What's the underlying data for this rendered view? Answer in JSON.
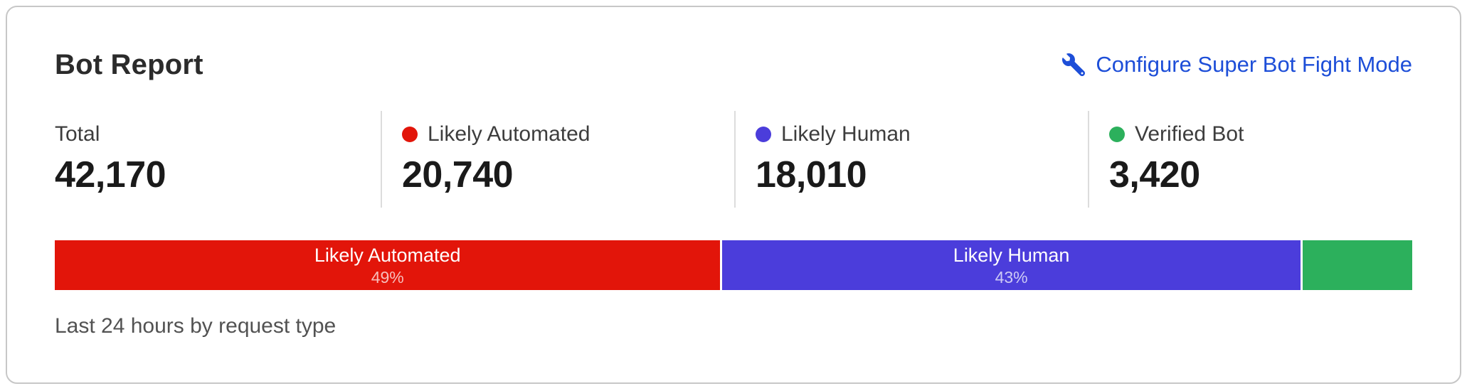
{
  "card": {
    "title": "Bot Report",
    "configure_link": {
      "label": "Configure Super Bot Fight Mode"
    },
    "stats": [
      {
        "label": "Total",
        "value": "42,170"
      },
      {
        "label": "Likely Automated",
        "value": "20,740",
        "dot_color": "#e2150a"
      },
      {
        "label": "Likely Human",
        "value": "18,010",
        "dot_color": "#4b3ddb"
      },
      {
        "label": "Verified Bot",
        "value": "3,420",
        "dot_color": "#2cb05c"
      }
    ],
    "footnote": "Last 24 hours by request type"
  },
  "chart_data": {
    "type": "bar",
    "stacked": true,
    "orientation": "horizontal",
    "title": "Bot Report",
    "subtitle": "Last 24 hours by request type",
    "categories": [
      "Likely Automated",
      "Likely Human",
      "Verified Bot"
    ],
    "values": [
      20740,
      18010,
      3420
    ],
    "total": 42170,
    "segments": [
      {
        "label": "Likely Automated",
        "value": 20740,
        "pct_label": "49%",
        "color": "#e2150a"
      },
      {
        "label": "Likely Human",
        "value": 18010,
        "pct_label": "43%",
        "color": "#4b3ddb"
      },
      {
        "label": "",
        "value": 3420,
        "pct_label": "",
        "color": "#2cb05c",
        "category": "Verified Bot"
      }
    ],
    "legend_position": "top",
    "grid": false
  },
  "colors": {
    "link_blue": "#1d4ed8",
    "likely_automated_red": "#e2150a",
    "likely_human_purple": "#4b3ddb",
    "verified_bot_green": "#2cb05c"
  }
}
